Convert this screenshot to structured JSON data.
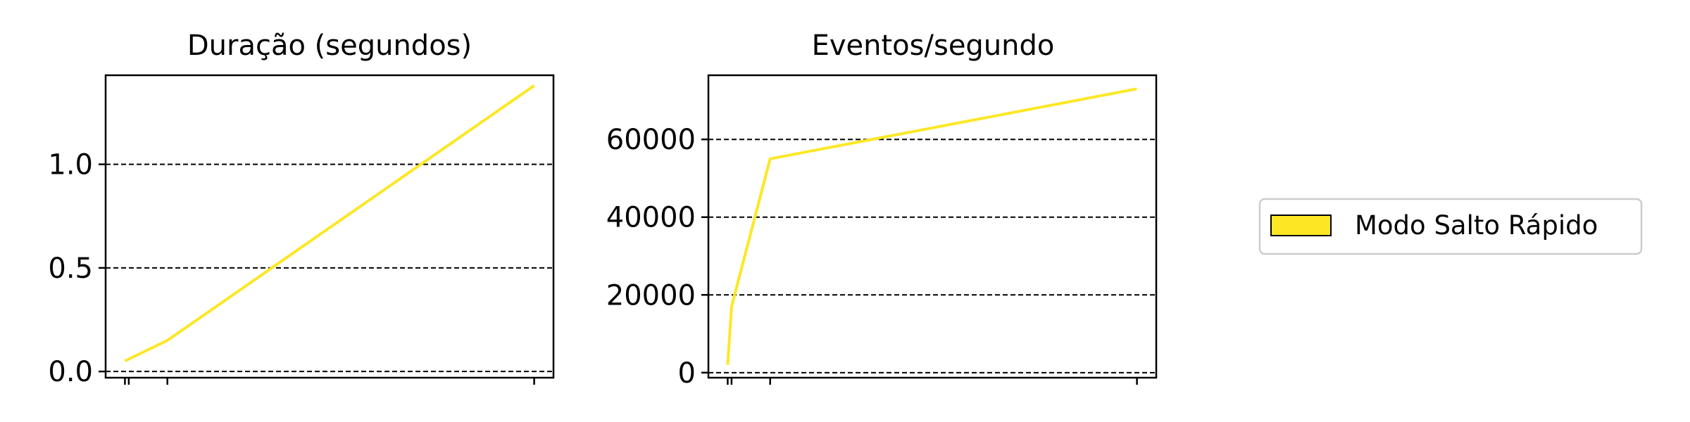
{
  "chart_data": [
    {
      "type": "line",
      "title": "Duração (segundos)",
      "xlabel": "",
      "ylabel": "",
      "x": [
        1,
        2,
        12,
        107
      ],
      "xlim": [
        -4,
        112
      ],
      "ylim": [
        -0.03,
        1.43
      ],
      "yticks": [
        0.0,
        0.5,
        1.0
      ],
      "ytick_labels": [
        "0.0",
        "0.5",
        "1.0"
      ],
      "grid": "horizontal dashed",
      "series": [
        {
          "name": "Modo Salto Rápido",
          "color": "#fde725",
          "values": [
            0.05,
            0.06,
            0.15,
            1.38
          ]
        }
      ]
    },
    {
      "type": "line",
      "title": "Eventos/segundo",
      "xlabel": "",
      "ylabel": "",
      "x": [
        1,
        2,
        12,
        107
      ],
      "xlim": [
        -4,
        112
      ],
      "ylim": [
        -1300,
        76500
      ],
      "yticks": [
        0,
        20000,
        40000,
        60000
      ],
      "ytick_labels": [
        "0",
        "20000",
        "40000",
        "60000"
      ],
      "grid": "horizontal dashed",
      "series": [
        {
          "name": "Modo Salto Rápido",
          "color": "#fde725",
          "values": [
            2000,
            17000,
            55000,
            73000
          ]
        }
      ]
    }
  ],
  "legend": {
    "placement": "right",
    "entries": [
      {
        "label": "Modo Salto Rápido",
        "color": "#fde725"
      }
    ]
  }
}
